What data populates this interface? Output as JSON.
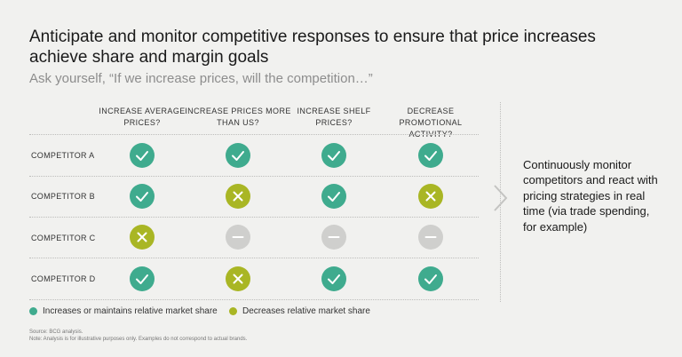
{
  "title": "Anticipate and monitor competitive responses to ensure that price increases achieve share and margin goals",
  "subtitle": "Ask yourself, “If we increase prices, will the competition…”",
  "columns": [
    "INCREASE AVERAGE PRICES?",
    "INCREASE PRICES MORE THAN US?",
    "INCREASE SHELF PRICES?",
    "DECREASE PROMOTIONAL ACTIVITY?"
  ],
  "rows": [
    {
      "label": "COMPETITOR A",
      "cells": [
        "check",
        "check",
        "check",
        "check"
      ]
    },
    {
      "label": "COMPETITOR B",
      "cells": [
        "check",
        "cross",
        "check",
        "cross"
      ]
    },
    {
      "label": "COMPETITOR C",
      "cells": [
        "cross",
        "dash",
        "dash",
        "dash"
      ]
    },
    {
      "label": "COMPETITOR D",
      "cells": [
        "check",
        "cross",
        "check",
        "check"
      ]
    }
  ],
  "side_note": "Continuously monitor competitors and react with pricing strategies in real time (via trade spending, for example)",
  "legend": [
    {
      "label": "Increases or maintains relative market share",
      "color": "#3fab8e"
    },
    {
      "label": "Decreases relative market share",
      "color": "#a9b624"
    }
  ],
  "colors": {
    "check": "#3fab8e",
    "cross": "#a9b624",
    "dash": "#cfcfcd"
  },
  "icons": {
    "check": "checkmark-icon",
    "cross": "cross-icon",
    "dash": "dash-icon"
  },
  "source": "Source: BCG analysis.",
  "note": "Note: Analysis is for illustrative purposes only. Examples do not correspond to actual brands."
}
